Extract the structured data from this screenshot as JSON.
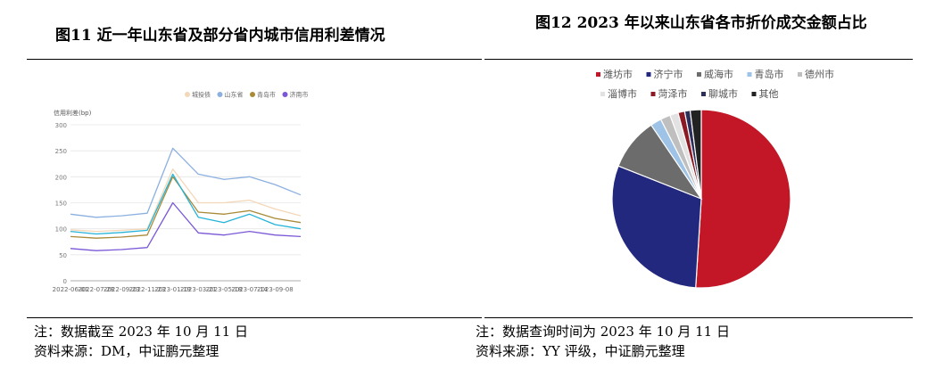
{
  "left": {
    "figure_title": "图11   近一年山东省及部分省内城市信用利差情况",
    "note": "注：数据截至 2023 年 10 月 11 日",
    "source": "资料来源：DM，中证鹏元整理"
  },
  "right": {
    "figure_title": "图12   2023 年以来山东省各市折价成交金额占比",
    "note": "注：数据查询时间为 2023 年 10 月 11 日",
    "source": "资料来源：YY 评级，中证鹏元整理"
  },
  "chart_data": [
    {
      "type": "line",
      "ylabel": "信用利差(bp)",
      "ylim": [
        0,
        300
      ],
      "yticks": [
        "0",
        "50",
        "100",
        "150",
        "200",
        "250",
        "300"
      ],
      "x": [
        "2022-06-01",
        "2022-07-28",
        "2022-09-23",
        "2022-11-23",
        "2023-01-19",
        "2023-03-21",
        "2023-05-18",
        "2023-07-14",
        "2023-09-08",
        "2023-10-11"
      ],
      "xticks": [
        "2022-06-01",
        "2022-07-28",
        "2022-09-23",
        "2022-11-23",
        "2023-01-19",
        "2023-03-21",
        "2023-05-18",
        "2023-07-14",
        "2023-09-08"
      ],
      "grid": true,
      "legend_position": "top",
      "series": [
        {
          "name": "城投债",
          "color": "#f3d7b8",
          "values": [
            98,
            95,
            97,
            100,
            215,
            150,
            150,
            155,
            138,
            125
          ]
        },
        {
          "name": "山东省",
          "color": "#8cb0e0",
          "values": [
            128,
            122,
            125,
            130,
            255,
            205,
            195,
            200,
            185,
            165
          ]
        },
        {
          "name": "青岛市",
          "color": "#a88a38",
          "values": [
            85,
            82,
            84,
            88,
            200,
            132,
            128,
            135,
            120,
            112
          ]
        },
        {
          "name": "济南市",
          "color": "#7a57d6",
          "values": [
            62,
            58,
            60,
            64,
            150,
            92,
            88,
            95,
            88,
            85
          ]
        },
        {
          "name": "烟台市",
          "color": "#23b3d9",
          "values": [
            95,
            90,
            93,
            97,
            205,
            122,
            112,
            128,
            108,
            100
          ]
        }
      ]
    },
    {
      "type": "pie",
      "legend_position": "top",
      "labels": [
        "潍坊市",
        "济宁市",
        "威海市",
        "青岛市",
        "德州市",
        "淄博市",
        "菏泽市",
        "聊城市",
        "其他"
      ],
      "values": [
        51.0,
        30.0,
        9.5,
        2.0,
        1.8,
        1.5,
        1.2,
        1.0,
        2.0
      ],
      "colors": [
        "#c31727",
        "#22287d",
        "#6c6c6c",
        "#9ec3e6",
        "#bfbfbf",
        "#e2e2e2",
        "#8c1a24",
        "#2b2f5a",
        "#222222"
      ]
    }
  ]
}
